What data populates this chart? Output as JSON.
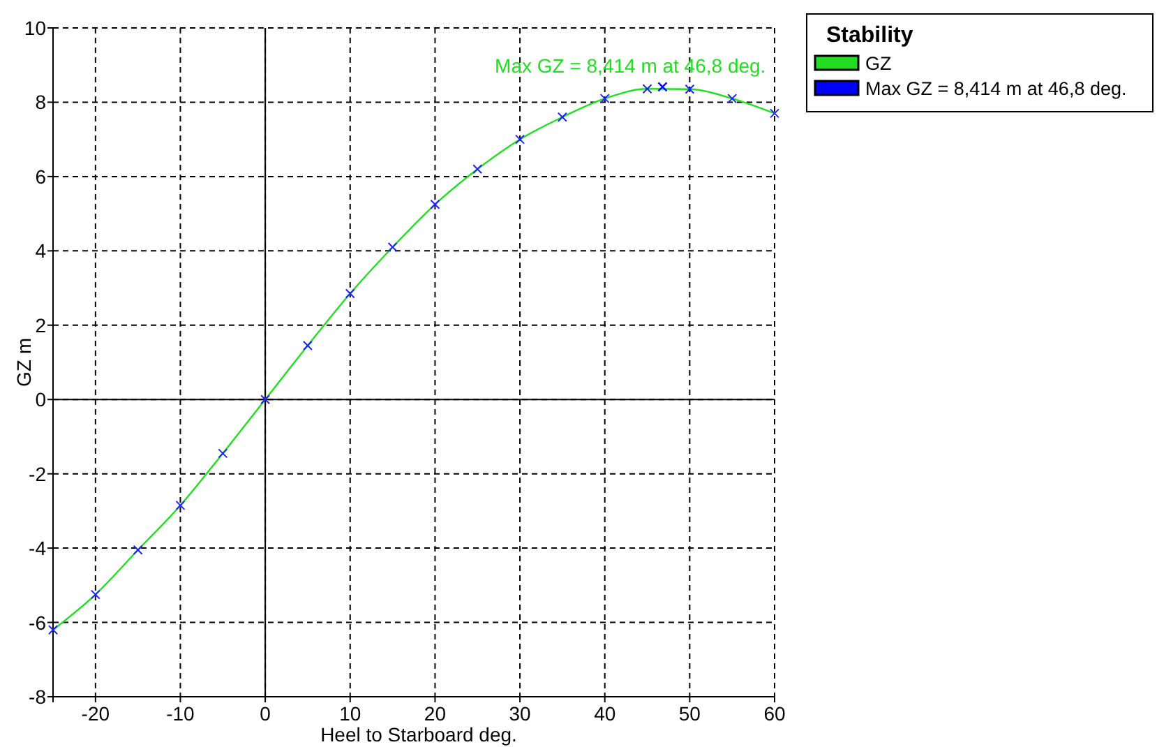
{
  "chart_data": {
    "type": "line",
    "xlabel": "Heel to Starboard   deg.",
    "ylabel": "GZ  m",
    "legend_title": "Stability",
    "legend": "top right",
    "grid": true,
    "xlim": [
      -25,
      60
    ],
    "xticks": [
      {
        "value": -25,
        "label": null
      },
      -20,
      -10,
      0,
      10,
      20,
      30,
      40,
      50,
      60
    ],
    "ylim": [
      -8,
      10
    ],
    "yticks": [
      -8,
      -6,
      -4,
      -2,
      0,
      2,
      4,
      6,
      8,
      10
    ],
    "series": [
      {
        "name": "GZ",
        "color": "#22dd22",
        "marker": "cross",
        "x": [
          -25,
          -20,
          -15,
          -10,
          -5,
          0,
          5,
          10,
          15,
          20,
          25,
          30,
          35,
          40,
          45,
          50,
          55,
          60
        ],
        "values": [
          -6.2,
          -5.25,
          -4.05,
          -2.85,
          -1.45,
          0,
          1.45,
          2.85,
          4.1,
          5.25,
          6.2,
          7.0,
          7.6,
          8.1,
          8.36,
          8.35,
          8.1,
          7.7
        ]
      },
      {
        "name": "Max GZ = 8,414 m at 46,8 deg.",
        "type": "scatter",
        "color": "#0000ff",
        "marker": "cross",
        "x": [
          46.8
        ],
        "values": [
          8.414
        ]
      }
    ],
    "annotations": [
      {
        "text": "Max GZ = 8,414 m at 46,8 deg.",
        "x": 46.8,
        "y": 8.414
      }
    ]
  }
}
